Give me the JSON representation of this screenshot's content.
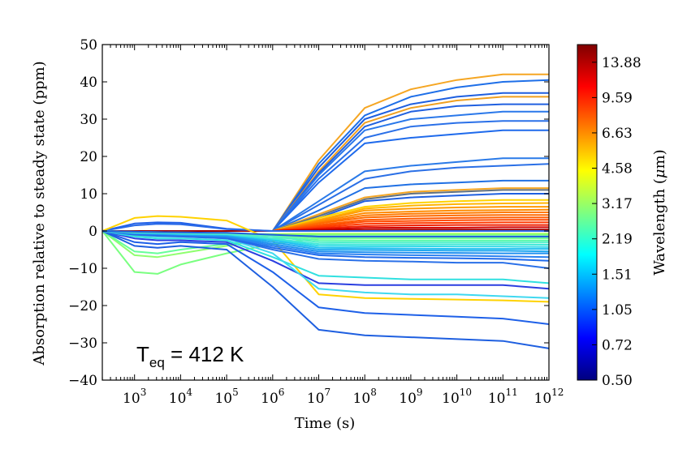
{
  "chart_data": {
    "type": "line",
    "title": "",
    "xlabel": "Time (s)",
    "ylabel": "Absorption relative to steady state (ppm)",
    "xscale": "log",
    "xlim_log10": [
      2.3,
      12
    ],
    "ylim": [
      -40,
      50
    ],
    "yticks": [
      -40,
      -30,
      -20,
      -10,
      0,
      10,
      20,
      30,
      40,
      50
    ],
    "ytick_labels": [
      "−40",
      "−30",
      "−20",
      "−10",
      "0",
      "10",
      "20",
      "30",
      "40",
      "50"
    ],
    "xticks_log10": [
      3,
      4,
      5,
      6,
      7,
      8,
      9,
      10,
      11,
      12
    ],
    "xtick_base": "10",
    "xtick_exponents": [
      "3",
      "4",
      "5",
      "6",
      "7",
      "8",
      "9",
      "10",
      "11",
      "12"
    ],
    "annotation": {
      "main": "T",
      "sub": "eq",
      "rest": " = 412 K"
    },
    "colorbar": {
      "label": "Wavelength (μm)",
      "label_prefix": "Wavelength (",
      "label_mu": "μ",
      "label_suffix": "m)",
      "tick_labels": [
        "0.50",
        "0.72",
        "1.05",
        "1.51",
        "2.19",
        "3.17",
        "4.58",
        "6.63",
        "9.59",
        "13.88"
      ],
      "colormap_stops": [
        "#00007f",
        "#0000ff",
        "#007fff",
        "#00ffff",
        "#7fff7f",
        "#ffff00",
        "#ff7f00",
        "#ff0000",
        "#7f0000"
      ]
    },
    "x_log10": [
      2.3,
      3,
      3.5,
      4,
      5,
      6,
      7,
      8,
      9,
      10,
      11,
      12
    ],
    "series": [
      {
        "color": "#f5a623",
        "values": [
          0,
          0,
          0,
          0,
          0,
          0,
          19,
          33,
          38,
          40.5,
          42,
          42
        ]
      },
      {
        "color": "#1e6fe8",
        "values": [
          0,
          0,
          0,
          0,
          0,
          0,
          18,
          31,
          36,
          38.5,
          40,
          40.5
        ]
      },
      {
        "color": "#1e5fe0",
        "values": [
          0,
          0,
          0,
          0,
          0,
          0,
          17,
          30,
          34,
          36,
          37,
          37
        ]
      },
      {
        "color": "#f0a020",
        "values": [
          0,
          0,
          0,
          0,
          0,
          0,
          16,
          29,
          33,
          35,
          36,
          36
        ]
      },
      {
        "color": "#2060e0",
        "values": [
          0,
          0,
          0,
          0,
          0,
          0,
          15.5,
          28,
          32,
          33.5,
          34,
          34
        ]
      },
      {
        "color": "#2a78ea",
        "values": [
          0,
          0,
          0,
          0,
          0,
          0,
          15,
          27,
          30,
          31,
          32,
          32
        ]
      },
      {
        "color": "#2a70e8",
        "values": [
          0,
          0,
          0,
          0,
          0,
          0,
          14,
          25,
          28,
          29,
          29.5,
          29.5
        ]
      },
      {
        "color": "#1e6aec",
        "values": [
          0,
          0,
          0,
          0,
          0,
          0,
          13,
          23.5,
          25,
          26,
          27,
          27
        ]
      },
      {
        "color": "#2a7ae8",
        "values": [
          0,
          0,
          0,
          0,
          0,
          0,
          8,
          16,
          17.5,
          18.5,
          19.5,
          19.5
        ]
      },
      {
        "color": "#2a6fe6",
        "values": [
          0,
          0,
          0,
          0,
          0,
          0,
          7,
          14,
          16,
          17,
          17.5,
          18
        ]
      },
      {
        "color": "#2070e4",
        "values": [
          0,
          0,
          0,
          0,
          0,
          0,
          5.5,
          11.5,
          12.5,
          13,
          13.5,
          13.5
        ]
      },
      {
        "color": "#f5a623",
        "values": [
          0,
          0,
          0,
          0,
          0,
          0,
          4.5,
          9,
          10.5,
          11,
          11.5,
          11.5
        ]
      },
      {
        "color": "#607080",
        "values": [
          0,
          0,
          0,
          0,
          0,
          0,
          4,
          8.5,
          10,
          10.5,
          11,
          11
        ]
      },
      {
        "color": "#1e5fe0",
        "values": [
          0,
          0,
          0,
          0,
          0,
          0,
          3.5,
          8,
          9,
          9.5,
          10,
          10
        ]
      },
      {
        "color": "#ffd200",
        "values": [
          0,
          0,
          0,
          0,
          0,
          0,
          3.5,
          6.5,
          7.5,
          8,
          8.3,
          8.3
        ]
      },
      {
        "color": "#ffb400",
        "values": [
          0,
          0,
          0,
          0,
          0,
          0,
          3,
          6,
          6.8,
          7.2,
          7.4,
          7.5
        ]
      },
      {
        "color": "#ff9a00",
        "values": [
          0,
          0,
          0,
          0,
          0,
          0,
          2.8,
          5.5,
          6,
          6.3,
          6.5,
          6.5
        ]
      },
      {
        "color": "#ff8a00",
        "values": [
          0,
          0,
          0,
          0,
          0,
          0,
          2.5,
          4.8,
          5.2,
          5.5,
          5.6,
          5.7
        ]
      },
      {
        "color": "#ff7a00",
        "values": [
          0,
          0,
          0,
          0,
          0,
          0,
          2.2,
          4.2,
          4.6,
          4.8,
          5,
          5
        ]
      },
      {
        "color": "#ff6a00",
        "values": [
          0,
          0,
          0,
          0,
          0,
          0,
          2,
          3.6,
          4,
          4.2,
          4.3,
          4.3
        ]
      },
      {
        "color": "#ff5a00",
        "values": [
          0,
          0,
          0,
          0,
          0,
          0,
          1.6,
          3,
          3.3,
          3.5,
          3.6,
          3.6
        ]
      },
      {
        "color": "#ff4a00",
        "values": [
          0,
          0,
          0,
          0,
          0,
          0,
          1.3,
          2.5,
          2.7,
          2.9,
          3,
          3
        ]
      },
      {
        "color": "#ff3a00",
        "values": [
          0,
          0,
          0,
          0,
          0,
          0,
          1,
          1.9,
          2.1,
          2.2,
          2.3,
          2.3
        ]
      },
      {
        "color": "#f02000",
        "values": [
          0,
          0,
          0,
          0,
          0,
          0,
          0.7,
          1.3,
          1.5,
          1.6,
          1.6,
          1.6
        ]
      },
      {
        "color": "#d00000",
        "values": [
          0,
          0,
          0,
          0,
          0,
          0,
          0.4,
          0.8,
          0.9,
          0.9,
          1,
          1
        ]
      },
      {
        "color": "#a00000",
        "values": [
          0,
          0,
          0,
          0,
          0,
          0,
          0.2,
          0.3,
          0.4,
          0.4,
          0.4,
          0.4
        ]
      },
      {
        "color": "#2060e8",
        "values": [
          0,
          2,
          2.3,
          2.2,
          0.6,
          0,
          0,
          0,
          0,
          0,
          0,
          0
        ]
      },
      {
        "color": "#2a6ae8",
        "values": [
          0,
          1.5,
          1.9,
          1.8,
          0.5,
          0,
          0,
          0,
          0,
          0,
          0,
          0
        ]
      },
      {
        "color": "#ffd200",
        "values": [
          0,
          3.5,
          4,
          3.8,
          2.8,
          -2.5,
          -17,
          -18,
          -18.2,
          -18.4,
          -18.6,
          -19
        ]
      },
      {
        "color": "#7aff80",
        "values": [
          0,
          -11,
          -11.5,
          -9,
          -6,
          -3.5,
          -2,
          -2,
          -2,
          -2,
          -2,
          -2
        ]
      },
      {
        "color": "#90ff70",
        "values": [
          0,
          -6.5,
          -7,
          -6,
          -4,
          -2,
          -1.5,
          -1.5,
          -1.5,
          -1.5,
          -1.5,
          -1.5
        ]
      },
      {
        "color": "#66ff99",
        "values": [
          0,
          -5.5,
          -6,
          -5,
          -3.5,
          -2,
          -1.6,
          -1.6,
          -1.6,
          -1.6,
          -1.6,
          -1.6
        ]
      },
      {
        "color": "#70ff88",
        "values": [
          0,
          -1.2,
          -1.5,
          -1.4,
          -1.2,
          -1.2,
          -1,
          -1,
          -1,
          -1,
          -1,
          -1
        ]
      },
      {
        "color": "#a0ff60",
        "values": [
          0,
          -0.8,
          -1,
          -1,
          -0.9,
          -0.8,
          -0.7,
          -0.7,
          -0.7,
          -0.7,
          -0.7,
          -0.7
        ]
      },
      {
        "color": "#1e5fe0",
        "values": [
          0,
          -4,
          -4.5,
          -4,
          -5,
          -15,
          -26.5,
          -28,
          -28.5,
          -29,
          -29.5,
          -31.5
        ]
      },
      {
        "color": "#1e60e8",
        "values": [
          0,
          -3,
          -3.5,
          -3,
          -3.5,
          -11,
          -20.5,
          -22,
          -22.5,
          -23,
          -23.5,
          -25
        ]
      },
      {
        "color": "#2a3ee0",
        "values": [
          0,
          -2,
          -2.5,
          -2.5,
          -3,
          -8,
          -14,
          -14.5,
          -14.5,
          -14.5,
          -14.5,
          -15.5
        ]
      },
      {
        "color": "#30e0e0",
        "values": [
          0,
          -1.5,
          -2,
          -2,
          -2.5,
          -7,
          -12,
          -12.5,
          -13,
          -13,
          -13,
          -14
        ]
      },
      {
        "color": "#40d8f0",
        "values": [
          0,
          -1,
          -1.5,
          -1.5,
          -2,
          -6,
          -15.5,
          -16.5,
          -17,
          -17,
          -17.5,
          -18
        ]
      },
      {
        "color": "#2a70e8",
        "values": [
          0,
          -1,
          -1.3,
          -1.5,
          -2,
          -5,
          -7.5,
          -8,
          -8.2,
          -8.5,
          -8.5,
          -10
        ]
      },
      {
        "color": "#1e6aec",
        "values": [
          0,
          -0.8,
          -1,
          -1.2,
          -1.8,
          -4.5,
          -6.5,
          -7,
          -7.2,
          -7.3,
          -7.5,
          -8
        ]
      },
      {
        "color": "#2a80f0",
        "values": [
          0,
          -0.7,
          -0.9,
          -1.1,
          -1.6,
          -4,
          -6,
          -6.3,
          -6.5,
          -6.6,
          -6.8,
          -7
        ]
      },
      {
        "color": "#2090f0",
        "values": [
          0,
          -0.6,
          -0.8,
          -1,
          -1.4,
          -3.5,
          -5.5,
          -5.7,
          -5.8,
          -5.9,
          -6,
          -6
        ]
      },
      {
        "color": "#20a8f0",
        "values": [
          0,
          -0.5,
          -0.7,
          -0.9,
          -1.2,
          -3,
          -5,
          -5.1,
          -5.2,
          -5.3,
          -5.3,
          -5.5
        ]
      },
      {
        "color": "#20c0f0",
        "values": [
          0,
          -0.5,
          -0.6,
          -0.8,
          -1,
          -2.5,
          -4.5,
          -4.6,
          -4.7,
          -4.8,
          -4.8,
          -4.8
        ]
      },
      {
        "color": "#30d8e8",
        "values": [
          0,
          -0.4,
          -0.5,
          -0.7,
          -0.9,
          -2.2,
          -4,
          -4.1,
          -4.1,
          -4.2,
          -4.2,
          -4.3
        ]
      },
      {
        "color": "#40e8d8",
        "values": [
          0,
          -0.4,
          -0.5,
          -0.6,
          -0.8,
          -2,
          -3.5,
          -3.6,
          -3.6,
          -3.6,
          -3.6,
          -3.7
        ]
      },
      {
        "color": "#50f0c8",
        "values": [
          0,
          -0.3,
          -0.4,
          -0.5,
          -0.7,
          -1.5,
          -3,
          -3.1,
          -3.1,
          -3.1,
          -3.1,
          -3.1
        ]
      },
      {
        "color": "#60f8b0",
        "values": [
          0,
          -0.3,
          -0.4,
          -0.5,
          -0.6,
          -1.2,
          -2.5,
          -2.6,
          -2.6,
          -2.6,
          -2.6,
          -2.6
        ]
      },
      {
        "color": "#78ff98",
        "values": [
          0,
          -0.2,
          -0.3,
          -0.4,
          -0.5,
          -1,
          -2,
          -2,
          -2,
          -2,
          -2,
          -2
        ]
      },
      {
        "color": "#1e5fe0",
        "values": [
          0,
          -0.2,
          -0.3,
          -0.4,
          -0.5,
          -1,
          -1.5,
          -1.5,
          -1.5,
          -1.5,
          -1.5,
          -1.5
        ]
      }
    ]
  }
}
